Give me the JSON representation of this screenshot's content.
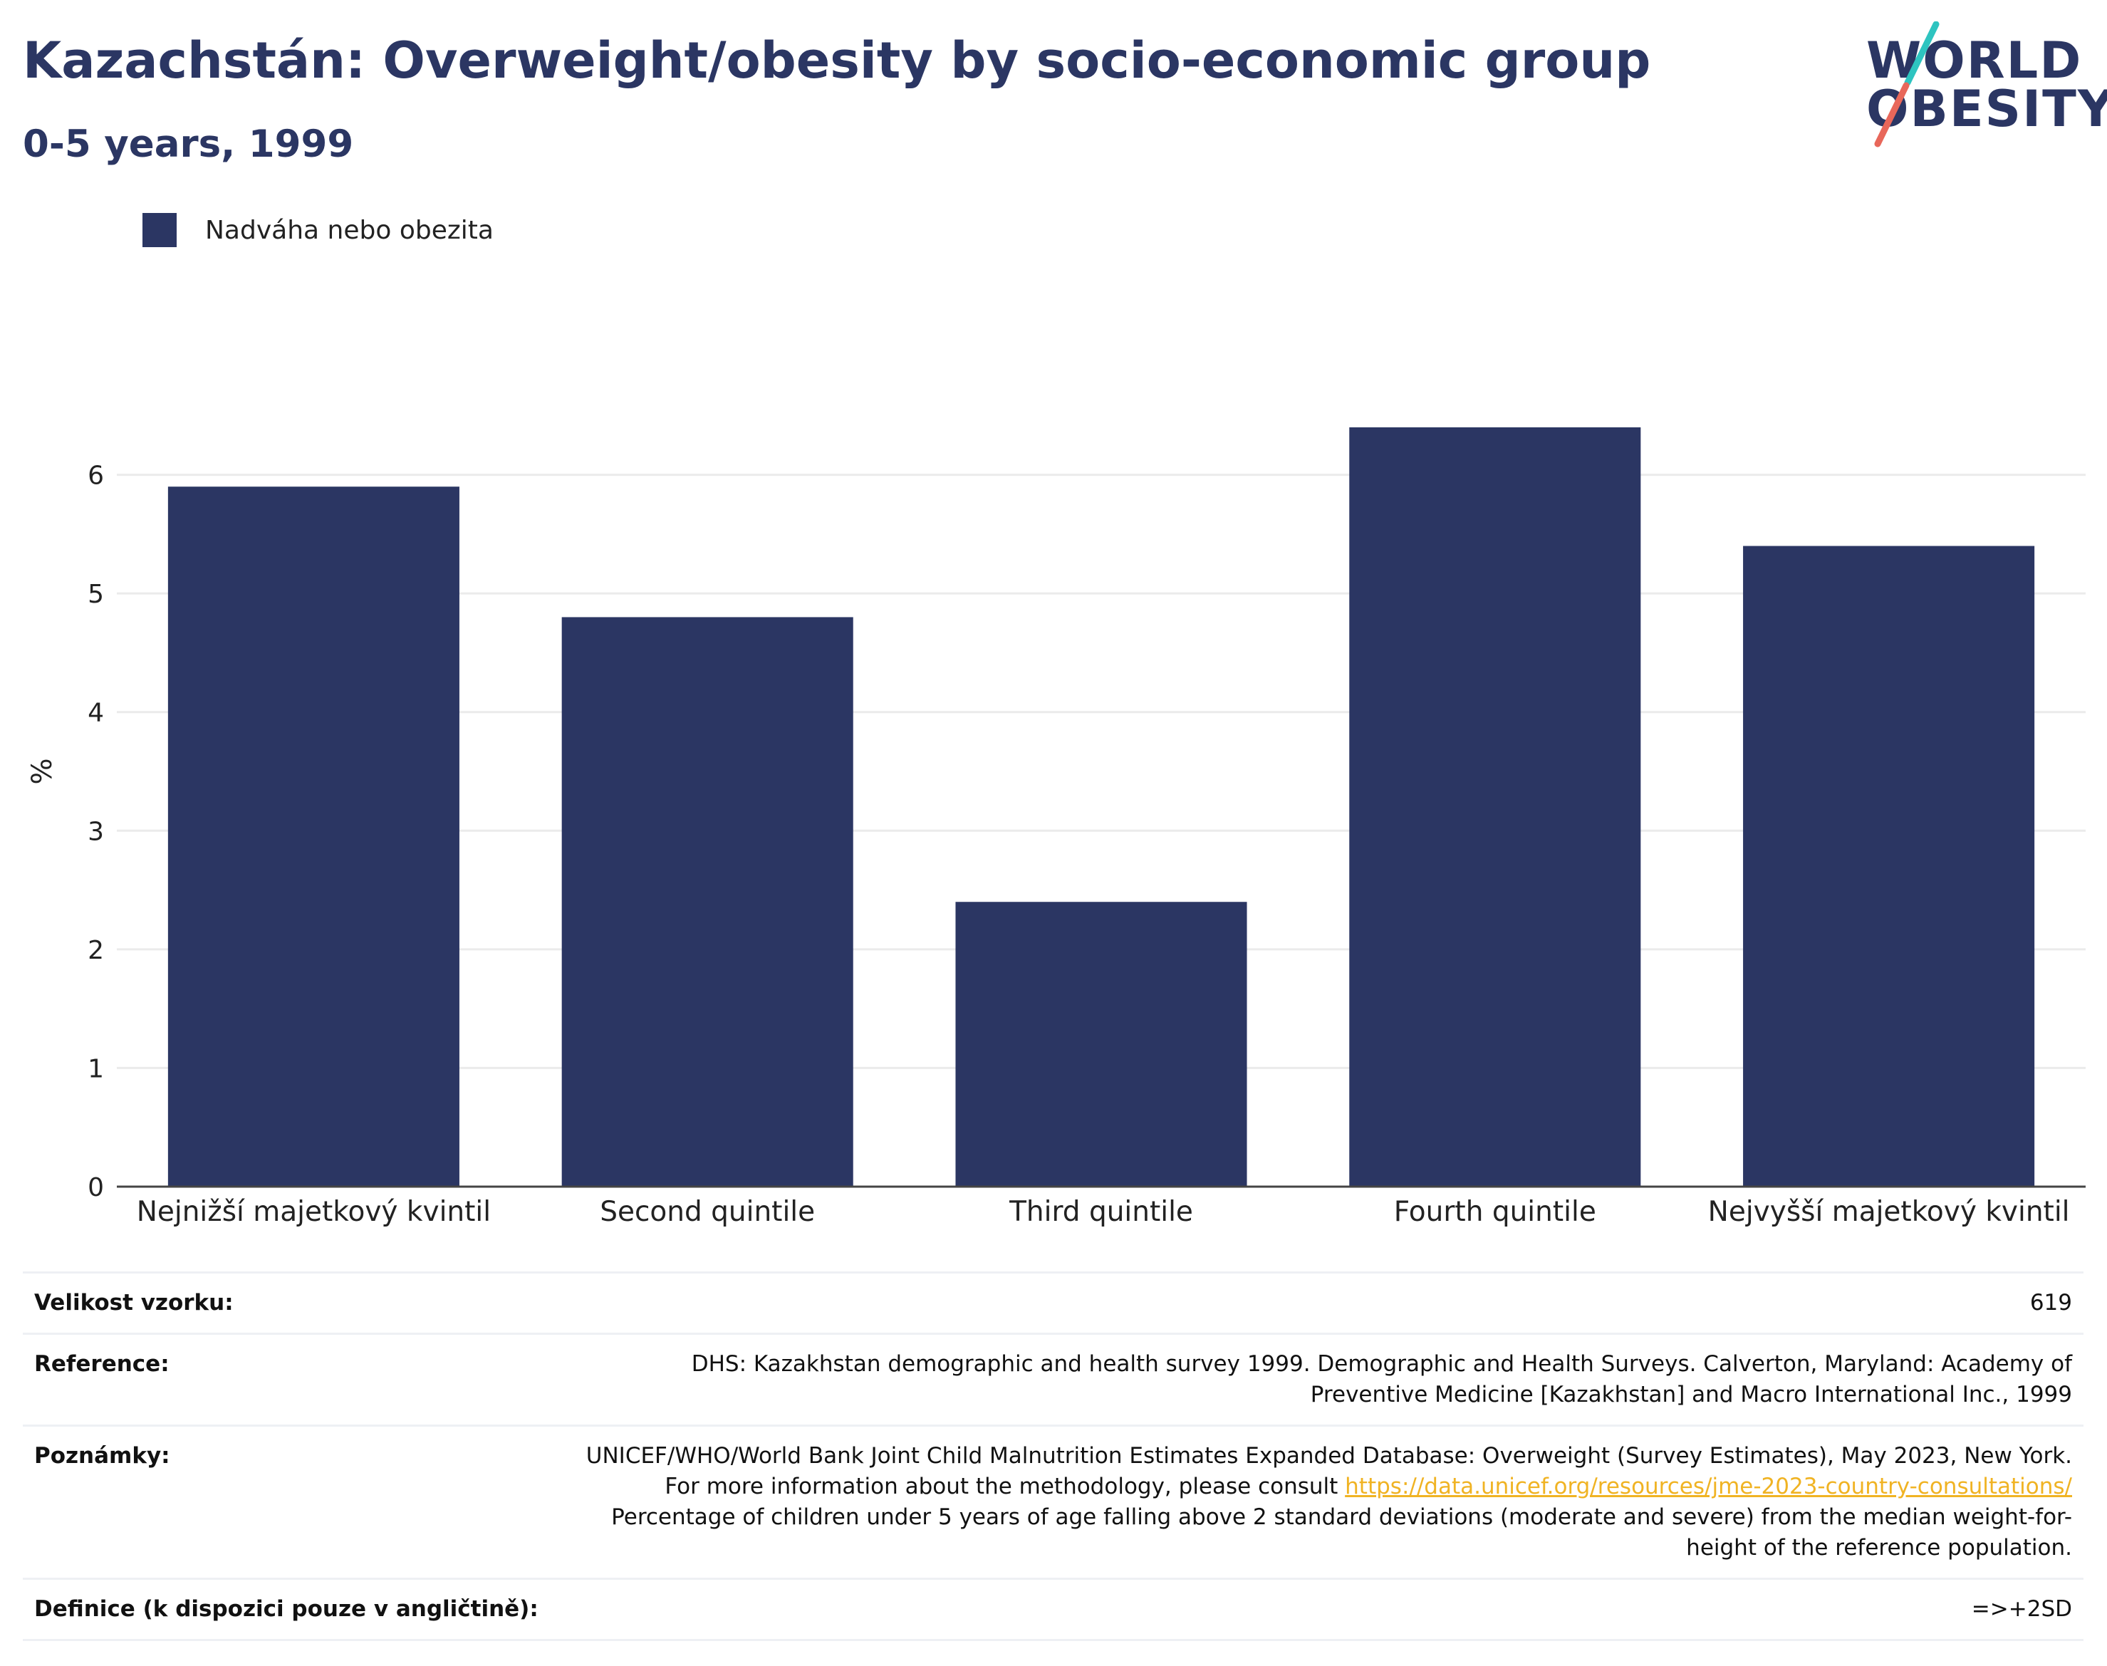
{
  "header": {
    "title": "Kazachstán: Overweight/obesity by socio-economic group",
    "subtitle": "0-5 years, 1999"
  },
  "logo": {
    "line1": "WORLD",
    "line2": "OBESITY",
    "accent_teal": "#2ec4c0",
    "accent_red": "#e8675a"
  },
  "colors": {
    "bar": "#2b3663",
    "grid": "#ebebeb",
    "axis": "#444444",
    "link": "#f0b323"
  },
  "chart_data": {
    "type": "bar",
    "categories": [
      "Nejnižší majetkový kvintil",
      "Second quintile",
      "Third quintile",
      "Fourth quintile",
      "Nejvyšší majetkový kvintil"
    ],
    "series": [
      {
        "name": "Nadváha nebo obezita",
        "values": [
          5.9,
          4.8,
          2.4,
          6.4,
          5.4
        ]
      }
    ],
    "ylabel": "%",
    "ylim": [
      0,
      7
    ],
    "yticks": [
      0,
      1,
      2,
      3,
      4,
      5,
      6
    ],
    "grid": true,
    "legend_position": "top-left"
  },
  "info": {
    "sample": {
      "label": "Velikost vzorku:",
      "value": "619"
    },
    "reference": {
      "label": "Reference:",
      "value": "DHS: Kazakhstan demographic and health survey 1999. Demographic and Health Surveys. Calverton, Maryland: Academy of Preventive Medicine [Kazakhstan] and Macro International Inc., 1999"
    },
    "notes": {
      "label": "Poznámky:",
      "text_before_link": "UNICEF/WHO/World Bank Joint Child Malnutrition Estimates Expanded Database: Overweight (Survey Estimates), May 2023, New York. For more information about the methodology, please consult ",
      "link": "https://data.unicef.org/resources/jme-2023-country-consultations/",
      "text_after_link": " Percentage of children under 5 years of age falling above 2 standard deviations (moderate and severe) from the median weight-for-height of the reference population."
    },
    "definition": {
      "label": "Definice (k dispozici pouze v angličtině):",
      "value": "=>+2SD"
    }
  }
}
